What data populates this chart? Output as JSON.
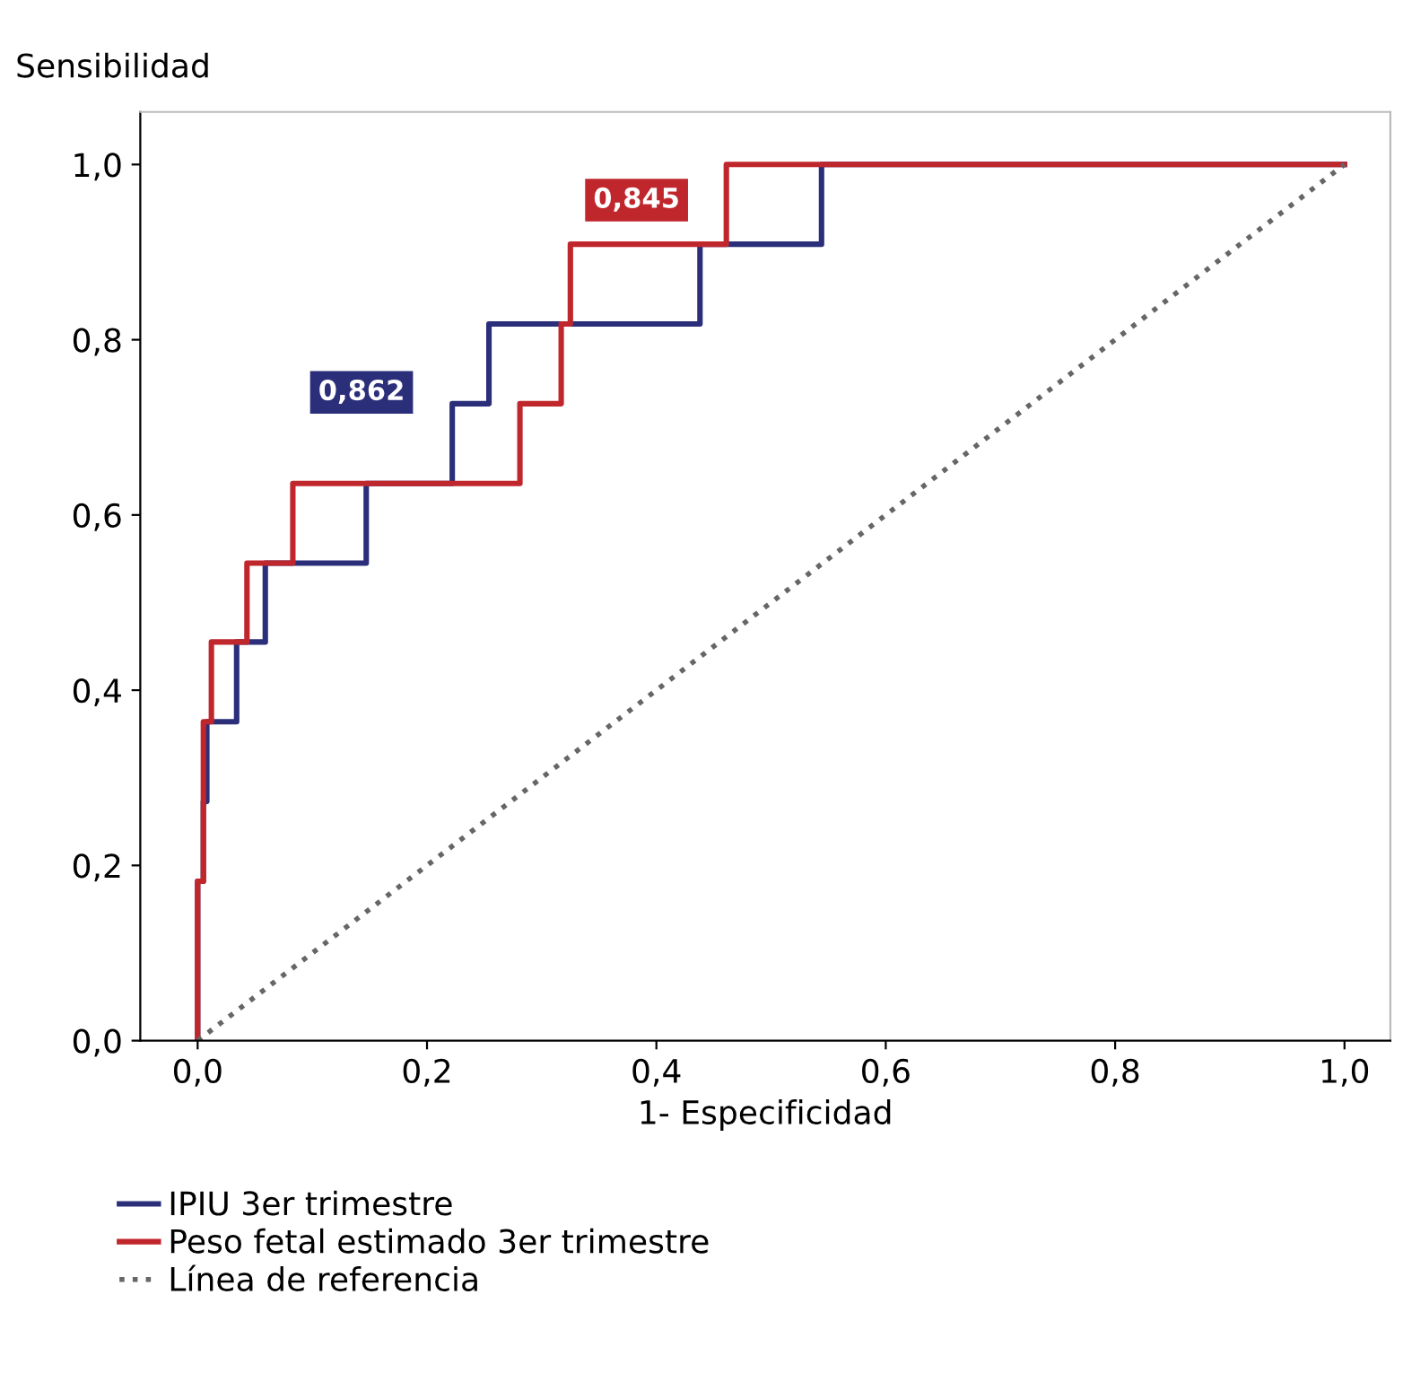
{
  "chart_data": {
    "type": "step",
    "xlabel": "1- Especificidad",
    "ylabel": "Sensibilidad",
    "xlim": [
      -0.05,
      1.04
    ],
    "ylim": [
      0,
      1.06
    ],
    "xticks": [
      {
        "value": 0,
        "label": "0,0"
      },
      {
        "value": 0.2,
        "label": "0,2"
      },
      {
        "value": 0.4,
        "label": "0,4"
      },
      {
        "value": 0.6,
        "label": "0,6"
      },
      {
        "value": 0.8,
        "label": "0,8"
      },
      {
        "value": 1,
        "label": "1,0"
      }
    ],
    "yticks": [
      {
        "value": 0,
        "label": "0,0"
      },
      {
        "value": 0.2,
        "label": "0,2"
      },
      {
        "value": 0.4,
        "label": "0,4"
      },
      {
        "value": 0.6,
        "label": "0,6"
      },
      {
        "value": 0.8,
        "label": "0,8"
      },
      {
        "value": 1,
        "label": "1,0"
      }
    ],
    "series": [
      {
        "name": "IPIU 3er trimestre",
        "color": "#2b2f7a",
        "line_style": "solid",
        "x": [
          0,
          0,
          0.005,
          0.008,
          0.034,
          0.059,
          0.147,
          0.222,
          0.254,
          0.438,
          0.544,
          1.0
        ],
        "values": [
          0,
          0.182,
          0.273,
          0.364,
          0.455,
          0.545,
          0.636,
          0.727,
          0.818,
          0.909,
          1.0,
          1.0
        ]
      },
      {
        "name": "Peso fetal estimado 3er trimestre",
        "color": "#c0272d",
        "line_style": "solid",
        "x": [
          0,
          0,
          0.005,
          0.012,
          0.043,
          0.083,
          0.281,
          0.317,
          0.325,
          0.461,
          1.0
        ],
        "values": [
          0,
          0.182,
          0.364,
          0.455,
          0.545,
          0.636,
          0.727,
          0.818,
          0.909,
          1.0,
          1.0
        ]
      },
      {
        "name": "Línea de referencia",
        "color": "#666666",
        "type": "line",
        "line_style": "dotted",
        "x": [
          0,
          1
        ],
        "values": [
          0,
          1
        ]
      }
    ],
    "annotations": [
      "0,862",
      "0,845"
    ],
    "legend": "bottom",
    "grid": false
  }
}
